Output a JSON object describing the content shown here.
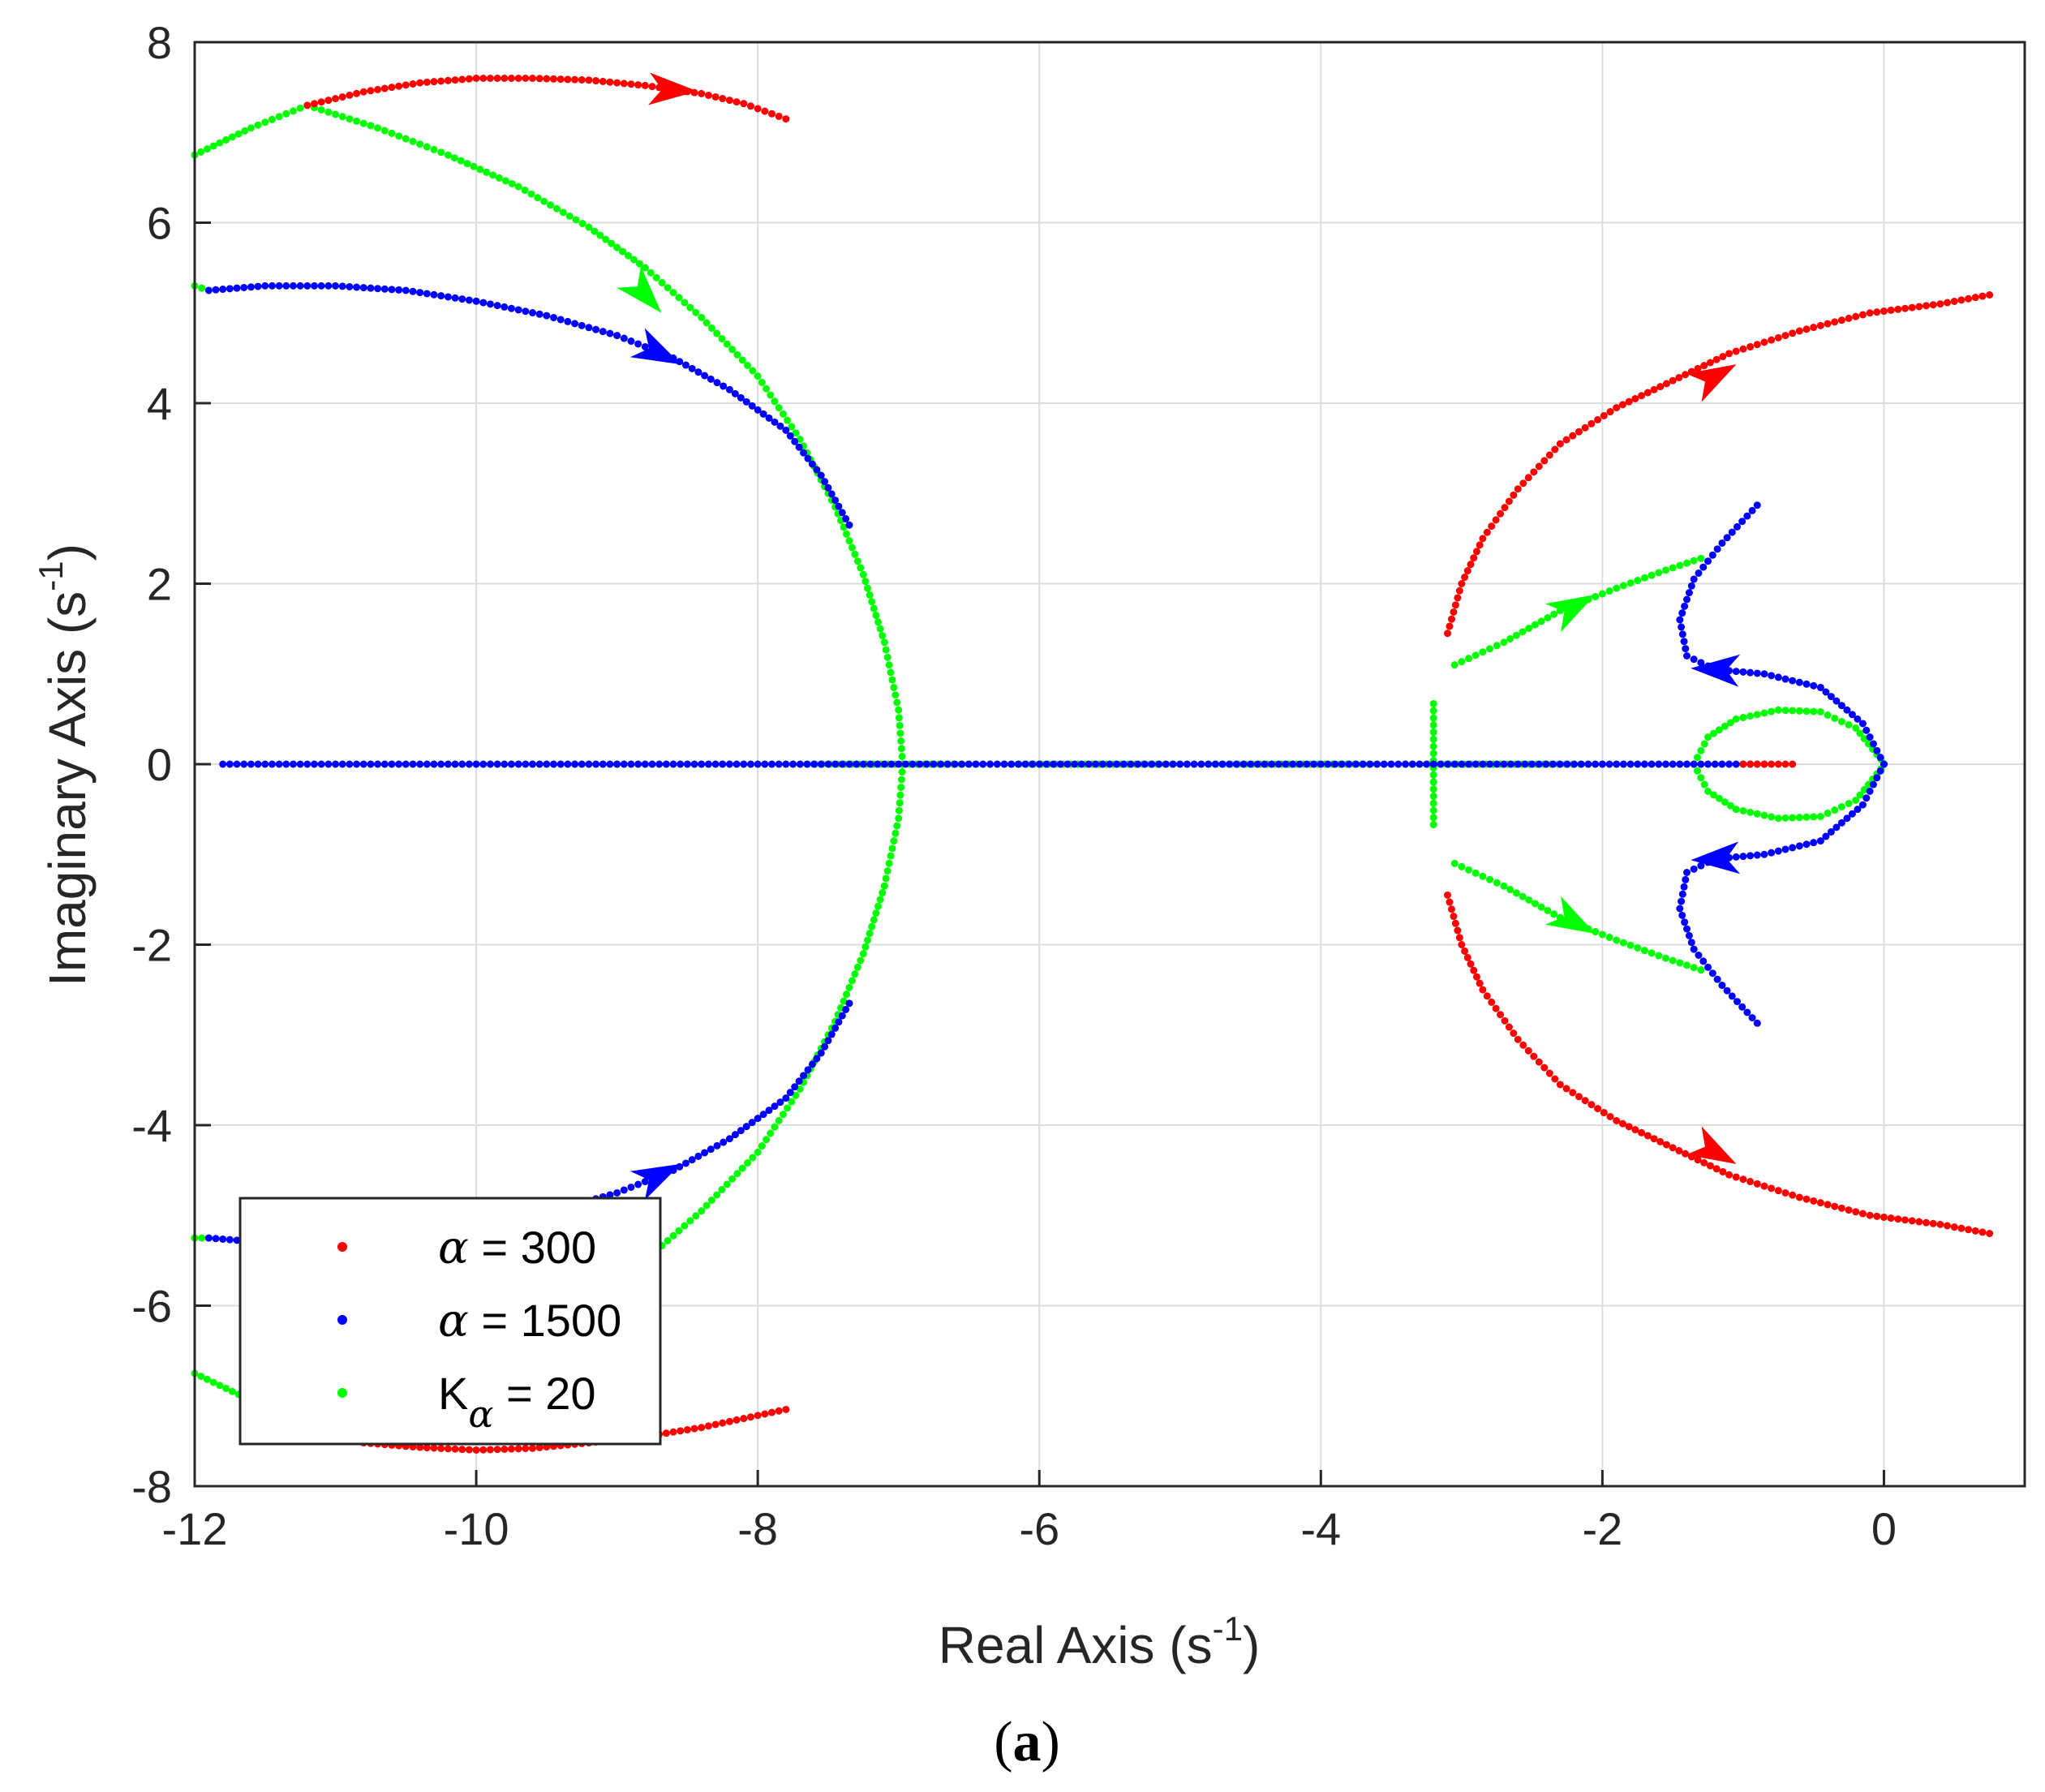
{
  "figure": {
    "panel_label": "a"
  },
  "chart_data": {
    "type": "scatter",
    "title": "",
    "xlabel": "Real Axis (s",
    "xlabel_sup": "-1",
    "xlabel_end": ")",
    "ylabel": "Imaginary Axis (s",
    "ylabel_sup": "-1",
    "ylabel_end": ")",
    "xlim": [
      -12,
      1
    ],
    "ylim": [
      -8,
      8
    ],
    "xticks": [
      -12,
      -10,
      -8,
      -6,
      -4,
      -2,
      0
    ],
    "yticks": [
      -8,
      -6,
      -4,
      -2,
      0,
      2,
      4,
      6,
      8
    ],
    "xtick_labels": [
      "-12",
      "-10",
      "-8",
      "-6",
      "-4",
      "-2",
      "0"
    ],
    "ytick_labels": [
      "-8",
      "-6",
      "-4",
      "-2",
      "0",
      "2",
      "4",
      "6",
      "8"
    ],
    "grid": true,
    "legend_position": "bottom-left",
    "series": [
      {
        "name_symbol": "α",
        "name_sub": "",
        "name_rest": " = 300",
        "color": "#ff0000",
        "branches": [
          [
            [
              -11.2,
              7.3
            ],
            [
              -10.8,
              7.45
            ],
            [
              -10.4,
              7.55
            ],
            [
              -10.0,
              7.6
            ],
            [
              -9.6,
              7.6
            ],
            [
              -9.2,
              7.58
            ],
            [
              -8.8,
              7.52
            ],
            [
              -8.4,
              7.43
            ],
            [
              -8.1,
              7.32
            ],
            [
              -7.8,
              7.15
            ]
          ],
          [
            [
              -3.1,
              1.45
            ],
            [
              -3.0,
              2.0
            ],
            [
              -2.85,
              2.5
            ],
            [
              -2.6,
              3.05
            ],
            [
              -2.3,
              3.55
            ],
            [
              -1.9,
              3.95
            ],
            [
              -1.5,
              4.25
            ],
            [
              -1.1,
              4.55
            ],
            [
              -0.6,
              4.8
            ],
            [
              -0.1,
              5.0
            ],
            [
              0.4,
              5.1
            ],
            [
              0.75,
              5.2
            ]
          ],
          [
            [
              -3.1,
              -1.45
            ],
            [
              -3.0,
              -2.0
            ],
            [
              -2.85,
              -2.5
            ],
            [
              -2.6,
              -3.05
            ],
            [
              -2.3,
              -3.55
            ],
            [
              -1.9,
              -3.95
            ],
            [
              -1.5,
              -4.25
            ],
            [
              -1.1,
              -4.55
            ],
            [
              -0.6,
              -4.8
            ],
            [
              -0.1,
              -5.0
            ],
            [
              0.4,
              -5.1
            ],
            [
              0.75,
              -5.2
            ]
          ],
          [
            [
              -10.8,
              -7.52
            ],
            [
              -10.4,
              -7.57
            ],
            [
              -10.0,
              -7.6
            ],
            [
              -9.6,
              -7.58
            ],
            [
              -9.2,
              -7.52
            ],
            [
              -8.8,
              -7.45
            ],
            [
              -8.4,
              -7.35
            ],
            [
              -8.1,
              -7.25
            ],
            [
              -7.8,
              -7.15
            ]
          ],
          [
            [
              -1.0,
              0.0
            ],
            [
              -0.9,
              0.0
            ],
            [
              -0.8,
              0.0
            ],
            [
              -0.7,
              0.0
            ],
            [
              -0.65,
              0.0
            ]
          ]
        ],
        "arrows": [
          {
            "at": [
              -8.6,
              7.47
            ],
            "dir": [
              1,
              -0.05
            ]
          },
          {
            "at": [
              -1.2,
              4.3
            ],
            "dir": [
              1,
              0.55
            ]
          },
          {
            "at": [
              -1.2,
              -4.3
            ],
            "dir": [
              1,
              -0.55
            ]
          }
        ]
      },
      {
        "name_symbol": "α",
        "name_sub": "",
        "name_rest": " = 1500",
        "color": "#0000ff",
        "branches": [
          [
            [
              -11.9,
              5.25
            ],
            [
              -11.5,
              5.3
            ],
            [
              -11.0,
              5.3
            ],
            [
              -10.5,
              5.25
            ],
            [
              -10.0,
              5.13
            ],
            [
              -9.5,
              4.97
            ],
            [
              -9.0,
              4.75
            ],
            [
              -8.6,
              4.5
            ],
            [
              -8.2,
              4.15
            ],
            [
              -7.8,
              3.7
            ],
            [
              -7.55,
              3.2
            ],
            [
              -7.35,
              2.65
            ]
          ],
          [
            [
              -11.9,
              -5.25
            ],
            [
              -11.5,
              -5.3
            ],
            [
              -11.0,
              -5.3
            ],
            [
              -10.5,
              -5.25
            ],
            [
              -10.0,
              -5.13
            ],
            [
              -9.5,
              -4.97
            ],
            [
              -9.0,
              -4.75
            ],
            [
              -8.6,
              -4.5
            ],
            [
              -8.2,
              -4.15
            ],
            [
              -7.8,
              -3.7
            ],
            [
              -7.55,
              -3.2
            ],
            [
              -7.35,
              -2.65
            ]
          ],
          [
            [
              0.0,
              0.0
            ],
            [
              -0.15,
              0.45
            ],
            [
              -0.45,
              0.85
            ],
            [
              -0.85,
              1.0
            ],
            [
              -1.2,
              1.05
            ],
            [
              -1.4,
              1.2
            ],
            [
              -1.45,
              1.6
            ],
            [
              -1.35,
              2.05
            ],
            [
              -1.15,
              2.45
            ],
            [
              -0.9,
              2.87
            ]
          ],
          [
            [
              0.0,
              0.0
            ],
            [
              -0.15,
              -0.45
            ],
            [
              -0.45,
              -0.85
            ],
            [
              -0.85,
              -1.0
            ],
            [
              -1.2,
              -1.05
            ],
            [
              -1.4,
              -1.2
            ],
            [
              -1.45,
              -1.6
            ],
            [
              -1.35,
              -2.05
            ],
            [
              -1.15,
              -2.45
            ],
            [
              -0.9,
              -2.87
            ]
          ],
          [
            [
              -11.8,
              0.0
            ],
            [
              -11.4,
              0.0
            ],
            [
              -11.0,
              0.0
            ],
            [
              -10.6,
              0.0
            ],
            [
              -10.2,
              0.0
            ],
            [
              -9.8,
              0.0
            ],
            [
              -9.4,
              0.0
            ],
            [
              -9.0,
              0.0
            ],
            [
              -8.6,
              0.0
            ],
            [
              -8.2,
              0.0
            ],
            [
              -7.8,
              0.0
            ],
            [
              -7.4,
              0.0
            ],
            [
              -7.0,
              0.0
            ],
            [
              -6.6,
              0.0
            ],
            [
              -6.2,
              0.0
            ],
            [
              -5.8,
              0.0
            ],
            [
              -5.4,
              0.0
            ],
            [
              -5.0,
              0.0
            ],
            [
              -4.6,
              0.0
            ],
            [
              -4.2,
              0.0
            ],
            [
              -3.8,
              0.0
            ],
            [
              -3.4,
              0.0
            ],
            [
              -3.0,
              0.0
            ],
            [
              -2.6,
              0.0
            ],
            [
              -2.2,
              0.0
            ],
            [
              -1.8,
              0.0
            ],
            [
              -1.4,
              0.0
            ],
            [
              -1.2,
              0.0
            ],
            [
              -1.0,
              0.0
            ],
            [
              -0.85,
              0.0
            ]
          ]
        ],
        "arrows": [
          {
            "at": [
              -8.7,
              4.55
            ],
            "dir": [
              1,
              -0.5
            ]
          },
          {
            "at": [
              -8.7,
              -4.55
            ],
            "dir": [
              1,
              0.5
            ]
          },
          {
            "at": [
              -1.2,
              1.05
            ],
            "dir": [
              -1,
              0.05
            ]
          },
          {
            "at": [
              -1.2,
              -1.05
            ],
            "dir": [
              -1,
              -0.05
            ]
          }
        ]
      },
      {
        "name_symbol": "K",
        "name_sub": "α",
        "name_rest": " = 20",
        "color": "#00ff00",
        "branches": [
          [
            [
              -12.0,
              6.75
            ],
            [
              -11.6,
              7.05
            ],
            [
              -11.2,
              7.3
            ],
            [
              -10.7,
              7.05
            ],
            [
              -10.2,
              6.75
            ],
            [
              -9.7,
              6.4
            ],
            [
              -9.2,
              5.95
            ],
            [
              -8.8,
              5.5
            ],
            [
              -8.4,
              4.95
            ],
            [
              -8.0,
              4.3
            ],
            [
              -7.7,
              3.6
            ],
            [
              -7.45,
              2.85
            ],
            [
              -7.25,
              2.1
            ],
            [
              -7.1,
              1.35
            ],
            [
              -7.0,
              0.6
            ],
            [
              -6.97,
              0.0
            ],
            [
              -7.0,
              -0.6
            ],
            [
              -7.1,
              -1.35
            ],
            [
              -7.25,
              -2.1
            ],
            [
              -7.45,
              -2.85
            ],
            [
              -7.7,
              -3.6
            ],
            [
              -8.0,
              -4.3
            ],
            [
              -8.4,
              -4.95
            ],
            [
              -8.8,
              -5.5
            ]
          ],
          [
            [
              -12.0,
              5.3
            ],
            [
              -11.9,
              5.25
            ]
          ],
          [
            [
              -12.0,
              -5.25
            ],
            [
              -11.9,
              -5.25
            ]
          ],
          [
            [
              -12.0,
              -6.75
            ],
            [
              -11.6,
              -7.05
            ]
          ],
          [
            [
              -3.05,
              1.1
            ],
            [
              -2.7,
              1.35
            ],
            [
              -2.3,
              1.7
            ],
            [
              -1.9,
              1.95
            ],
            [
              -1.55,
              2.15
            ],
            [
              -1.3,
              2.28
            ]
          ],
          [
            [
              -3.05,
              -1.1
            ],
            [
              -2.7,
              -1.35
            ],
            [
              -2.3,
              -1.7
            ],
            [
              -1.9,
              -1.95
            ],
            [
              -1.55,
              -2.15
            ],
            [
              -1.3,
              -2.28
            ]
          ],
          [
            [
              -1.35,
              0.0
            ],
            [
              -1.25,
              0.3
            ],
            [
              -1.05,
              0.5
            ],
            [
              -0.75,
              0.6
            ],
            [
              -0.45,
              0.58
            ],
            [
              -0.2,
              0.4
            ],
            [
              -0.02,
              0.05
            ],
            [
              0.0,
              0.0
            ],
            [
              -0.02,
              -0.05
            ],
            [
              -0.2,
              -0.4
            ],
            [
              -0.45,
              -0.58
            ],
            [
              -0.75,
              -0.6
            ],
            [
              -1.05,
              -0.5
            ],
            [
              -1.25,
              -0.3
            ],
            [
              -1.35,
              0.0
            ]
          ],
          [
            [
              -3.2,
              0.67
            ],
            [
              -3.2,
              -0.67
            ]
          ],
          [
            [
              -10.8,
              0.0
            ],
            [
              -10.2,
              0.0
            ],
            [
              -9.6,
              0.0
            ],
            [
              -9.0,
              0.0
            ],
            [
              -8.4,
              0.0
            ],
            [
              -7.8,
              0.0
            ],
            [
              -2.0,
              0.0
            ],
            [
              -1.6,
              0.0
            ],
            [
              -1.3,
              0.0
            ],
            [
              -1.1,
              0.0
            ],
            [
              -0.9,
              0.0
            ]
          ]
        ],
        "arrows": [
          {
            "at": [
              -8.8,
              5.2
            ],
            "dir": [
              1,
              -1.1
            ]
          },
          {
            "at": [
              -2.2,
              1.75
            ],
            "dir": [
              1,
              0.55
            ]
          },
          {
            "at": [
              -2.2,
              -1.75
            ],
            "dir": [
              1,
              -0.55
            ]
          }
        ]
      }
    ]
  }
}
